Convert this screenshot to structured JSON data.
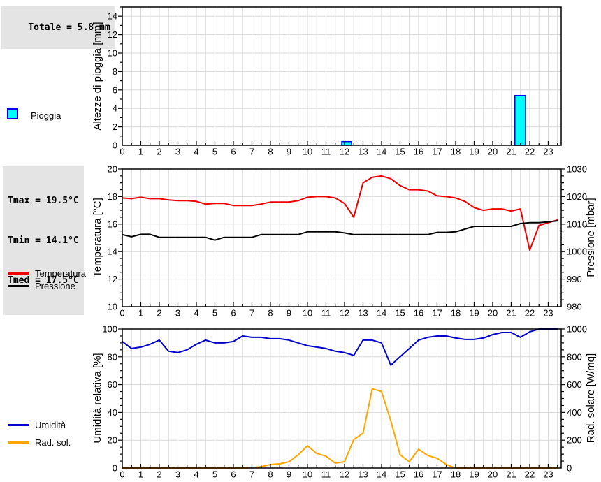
{
  "stats": {
    "rain_total": "Totale = 5.8 mm",
    "tmax": "Tmax = 19.5°C",
    "tmin": "Tmin = 14.1°C",
    "tmed": "Tmed = 17.5°C"
  },
  "legends": {
    "rain": "Pioggia",
    "temperature": "Temperatura",
    "pressure": "Pressione",
    "humidity": "Umidità",
    "radiation": "Rad. sol."
  },
  "colors": {
    "rain_fill": "#00ffff",
    "rain_border": "#0000ee",
    "temperature": "#ee0000",
    "pressure": "#000000",
    "humidity": "#0000cc",
    "radiation": "#ffa500",
    "grid": "#d9d9d9",
    "frame": "#000000",
    "stat_bg": "#e4e4e4"
  },
  "chart_data": [
    {
      "type": "bar",
      "ylabel": "Altezze di pioggia [mm]",
      "xlim": [
        0,
        23.7
      ],
      "x_tick_labels": [
        0,
        1,
        2,
        3,
        4,
        5,
        6,
        7,
        8,
        9,
        10,
        11,
        12,
        13,
        14,
        15,
        16,
        17,
        18,
        19,
        20,
        21,
        22,
        23
      ],
      "left_axis": {
        "label": "Altezze di pioggia [mm]",
        "min": 0,
        "max": 15,
        "major": 2,
        "minor": 1,
        "label_max": 14
      },
      "total_mm": 5.8,
      "bar_fill": "#00ffff",
      "bar_stroke": "#0000ee",
      "bars": [
        {
          "x_start": 11.85,
          "x_end": 12.38,
          "hour": 12,
          "value": 0.4
        },
        {
          "x_start": 21.2,
          "x_end": 21.77,
          "hour": 22,
          "value": 5.4
        }
      ]
    },
    {
      "type": "line",
      "xlim": [
        0,
        23.7
      ],
      "x_tick_labels": [
        0,
        1,
        2,
        3,
        4,
        5,
        6,
        7,
        8,
        9,
        10,
        11,
        12,
        13,
        14,
        15,
        16,
        17,
        18,
        19,
        20,
        21,
        22,
        23
      ],
      "left_axis": {
        "label": "Temperatura [°C]",
        "min": 10,
        "max": 20,
        "major": 2,
        "minor": 0.5
      },
      "right_axis": {
        "label": "Pressione [mbar]",
        "min": 980,
        "max": 1030,
        "major": 10,
        "minor": 2.5
      },
      "stats": {
        "tmax_c": 19.5,
        "tmin_c": 14.1,
        "tmed_c": 17.5
      },
      "x": [
        0,
        0.5,
        1,
        1.5,
        2,
        2.5,
        3,
        3.5,
        4,
        4.5,
        5,
        5.5,
        6,
        6.5,
        7,
        7.5,
        8,
        8.5,
        9,
        9.5,
        10,
        10.5,
        11,
        11.5,
        12,
        12.5,
        13,
        13.5,
        14,
        14.5,
        15,
        15.5,
        16,
        16.5,
        17,
        17.5,
        18,
        18.5,
        19,
        19.5,
        20,
        20.5,
        21,
        21.5,
        22,
        22.5,
        23,
        23.5
      ],
      "series": [
        {
          "name": "Temperatura",
          "axis": "left",
          "color": "#ee0000",
          "values": [
            17.9,
            17.85,
            17.95,
            17.85,
            17.85,
            17.75,
            17.7,
            17.7,
            17.65,
            17.45,
            17.5,
            17.5,
            17.35,
            17.35,
            17.35,
            17.45,
            17.6,
            17.6,
            17.6,
            17.7,
            17.95,
            18.0,
            18.0,
            17.9,
            17.5,
            16.5,
            19.0,
            19.4,
            19.5,
            19.3,
            18.8,
            18.5,
            18.5,
            18.4,
            18.05,
            18.0,
            17.9,
            17.65,
            17.2,
            17.0,
            17.1,
            17.1,
            16.95,
            17.1,
            14.1,
            15.9,
            16.1,
            16.3
          ]
        },
        {
          "name": "Pressione",
          "axis": "right",
          "color": "#000000",
          "values": [
            1006.2,
            1005.4,
            1006.3,
            1006.3,
            1005.2,
            1005.2,
            1005.2,
            1005.2,
            1005.2,
            1005.2,
            1004.2,
            1005.2,
            1005.2,
            1005.2,
            1005.2,
            1006.2,
            1006.2,
            1006.2,
            1006.2,
            1006.2,
            1007.2,
            1007.2,
            1007.2,
            1007.2,
            1006.8,
            1006.2,
            1006.2,
            1006.2,
            1006.2,
            1006.2,
            1006.2,
            1006.2,
            1006.2,
            1006.2,
            1007.0,
            1007.0,
            1007.2,
            1008.2,
            1009.2,
            1009.2,
            1009.2,
            1009.2,
            1009.2,
            1010.2,
            1010.5,
            1010.5,
            1010.8,
            1011.2
          ]
        }
      ]
    },
    {
      "type": "line",
      "xlim": [
        0,
        23.7
      ],
      "x_tick_labels": [
        0,
        1,
        2,
        3,
        4,
        5,
        6,
        7,
        8,
        9,
        10,
        11,
        12,
        13,
        14,
        15,
        16,
        17,
        18,
        19,
        20,
        21,
        22,
        23
      ],
      "left_axis": {
        "label": "Umidità relativa [%]",
        "min": 0,
        "max": 100,
        "major": 20,
        "minor": 5
      },
      "right_axis": {
        "label": "Rad. solare [W/mq]",
        "min": 0,
        "max": 1000,
        "major": 200,
        "minor": 50
      },
      "x": [
        0,
        0.5,
        1,
        1.5,
        2,
        2.5,
        3,
        3.5,
        4,
        4.5,
        5,
        5.5,
        6,
        6.5,
        7,
        7.5,
        8,
        8.5,
        9,
        9.5,
        10,
        10.5,
        11,
        11.5,
        12,
        12.5,
        13,
        13.5,
        14,
        14.5,
        15,
        15.5,
        16,
        16.5,
        17,
        17.5,
        18,
        18.5,
        19,
        19.5,
        20,
        20.5,
        21,
        21.5,
        22,
        22.5,
        23,
        23.5
      ],
      "series": [
        {
          "name": "Umidità",
          "axis": "left",
          "color": "#0000cc",
          "values": [
            91,
            86,
            87,
            89,
            92,
            84,
            83,
            85,
            89,
            92,
            90,
            90,
            91,
            95,
            94,
            94,
            93,
            93,
            92,
            90,
            88,
            87,
            86,
            84,
            83,
            81,
            92,
            92,
            90,
            74,
            80,
            86,
            92,
            94,
            95,
            95,
            93.5,
            92.5,
            92.5,
            93.5,
            96,
            97.5,
            97.5,
            94,
            98,
            100,
            100,
            100
          ]
        },
        {
          "name": "Rad. sol.",
          "axis": "right",
          "color": "#ffa500",
          "values": [
            0,
            0,
            0,
            0,
            0,
            0,
            0,
            0,
            0,
            0,
            0,
            0,
            0,
            0,
            2,
            10,
            25,
            30,
            45,
            95,
            160,
            105,
            85,
            35,
            45,
            205,
            250,
            570,
            550,
            340,
            95,
            45,
            135,
            90,
            70,
            25,
            0,
            0,
            0,
            0,
            0,
            0,
            0,
            0,
            0,
            0,
            0,
            0
          ]
        }
      ]
    }
  ]
}
